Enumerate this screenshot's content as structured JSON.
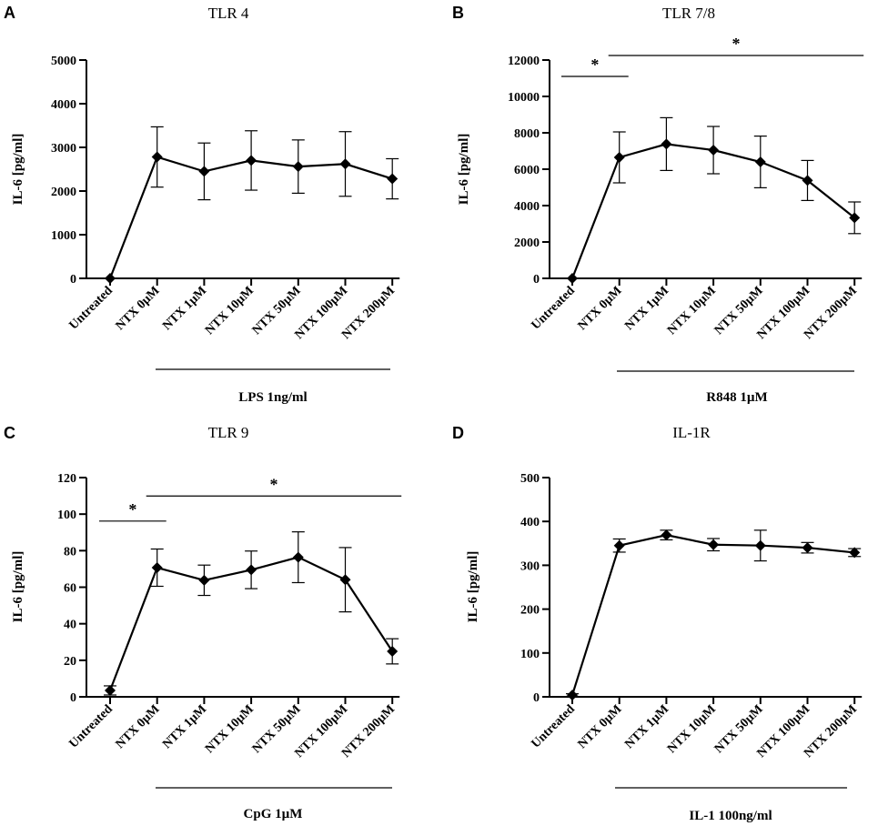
{
  "chart_data": [
    {
      "type": "line",
      "panel_letter": "A",
      "title": "TLR 4",
      "ylabel": "IL-6 [pg/ml]",
      "ylim": [
        0,
        5000
      ],
      "yticks": [
        0,
        1000,
        2000,
        3000,
        4000,
        5000
      ],
      "categories": [
        "Untreated",
        "NTX 0µM",
        "NTX 1µM",
        "NTX 10µM",
        "NTX 50µM",
        "NTX 100µM",
        "NTX 200µM"
      ],
      "values": [
        0,
        2780,
        2450,
        2700,
        2560,
        2620,
        2280
      ],
      "error": [
        0,
        690,
        650,
        680,
        610,
        740,
        460
      ],
      "treatment_label": "LPS 1ng/ml",
      "significance": []
    },
    {
      "type": "line",
      "panel_letter": "B",
      "title": "TLR 7/8",
      "ylabel": "IL-6 [pg/ml]",
      "ylim": [
        0,
        12000
      ],
      "yticks": [
        0,
        2000,
        4000,
        6000,
        8000,
        10000,
        12000
      ],
      "categories": [
        "Untreated",
        "NTX 0µM",
        "NTX 1µM",
        "NTX 10µM",
        "NTX 50µM",
        "NTX 100µM",
        "NTX 200µM"
      ],
      "values": [
        0,
        6650,
        7380,
        7050,
        6400,
        5380,
        3330
      ],
      "error": [
        0,
        1400,
        1450,
        1300,
        1420,
        1100,
        870
      ],
      "treatment_label": "R848 1µM",
      "significance": [
        {
          "from": 0,
          "to": 1,
          "value": 11100,
          "label": "*"
        },
        {
          "from": 1,
          "to": 6,
          "value": 12250,
          "label": "*"
        }
      ]
    },
    {
      "type": "line",
      "panel_letter": "C",
      "title": "TLR 9",
      "ylabel": "IL-6 [pg/ml]",
      "ylim": [
        0,
        120
      ],
      "yticks": [
        0,
        20,
        40,
        60,
        80,
        100,
        120
      ],
      "categories": [
        "Untreated",
        "NTX 0µM",
        "NTX 1µM",
        "NTX 10µM",
        "NTX 50µM",
        "NTX 100µM",
        "NTX 200µM"
      ],
      "values": [
        3.5,
        70.7,
        63.8,
        69.5,
        76.4,
        64.1,
        24.9
      ],
      "error": [
        2.5,
        10.2,
        8.3,
        10.3,
        13.9,
        17.6,
        6.9
      ],
      "treatment_label": "CpG 1µM",
      "significance": [
        {
          "from": 0,
          "to": 1,
          "value": 96.2,
          "label": "*"
        },
        {
          "from": 1,
          "to": 6,
          "value": 109.9,
          "label": "*"
        }
      ]
    },
    {
      "type": "line",
      "panel_letter": "D",
      "title": "IL-1R",
      "ylabel": "IL-6 [pg/ml]",
      "ylim": [
        0,
        500
      ],
      "yticks": [
        0,
        100,
        200,
        300,
        400,
        500
      ],
      "categories": [
        "Untreated",
        "NTX 0µM",
        "NTX 1µM",
        "NTX 10µM",
        "NTX 50µM",
        "NTX 100µM",
        "NTX 200µM"
      ],
      "values": [
        4,
        345,
        369,
        347,
        345,
        340,
        329
      ],
      "error": [
        3,
        15,
        11,
        14,
        35,
        12,
        9
      ],
      "treatment_label": "IL-1 100ng/ml",
      "significance": []
    }
  ]
}
